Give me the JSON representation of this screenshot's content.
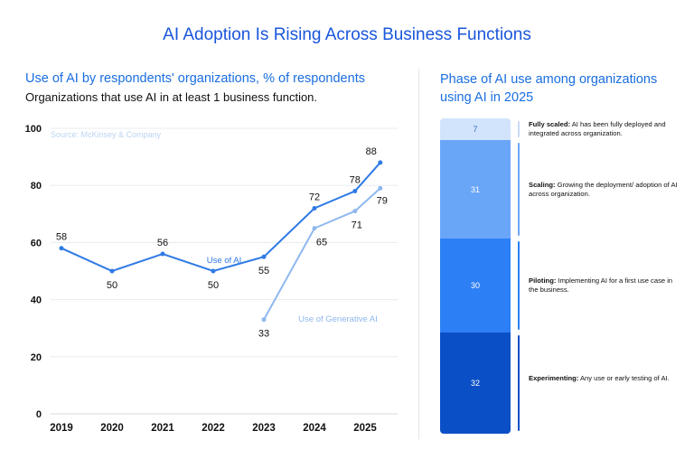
{
  "main_title": "AI Adoption Is Rising Across Business Functions",
  "left": {
    "title": "Use of AI by respondents' organizations, % of respondents",
    "subtitle": "Organizations that use AI in at least 1 business function.",
    "source": "Source: McKinsey & Company"
  },
  "right": {
    "title": "Phase of AI use among organizations using AI in 2025"
  },
  "colors": {
    "title_blue": "#1a56db",
    "ai_line": "#2f7ae5",
    "genai_line": "#8fb8ef",
    "grid": "#e8ebef",
    "fully_scaled": "#d2e3fc",
    "scaling": "#6aa6f8",
    "piloting": "#2d7ff5",
    "experimenting": "#0b4fc7"
  },
  "chart_data": [
    {
      "type": "line",
      "x": [
        "2019",
        "2020",
        "2021",
        "2022",
        "2023",
        "2024",
        "2025"
      ],
      "ylim": [
        0,
        100
      ],
      "yticks": [
        0,
        20,
        40,
        60,
        80,
        100
      ],
      "grid": true,
      "series": [
        {
          "name": "Use of AI",
          "points": [
            {
              "x": 2019.0,
              "y": 58,
              "label": "58"
            },
            {
              "x": 2020.0,
              "y": 50,
              "label": "50"
            },
            {
              "x": 2021.0,
              "y": 56,
              "label": "56"
            },
            {
              "x": 2022.0,
              "y": 50,
              "label": "50"
            },
            {
              "x": 2023.0,
              "y": 55,
              "label": "55"
            },
            {
              "x": 2024.0,
              "y": 72,
              "label": "72"
            },
            {
              "x": 2024.8,
              "y": 78,
              "label": "78"
            },
            {
              "x": 2025.3,
              "y": 88,
              "label": "88"
            }
          ]
        },
        {
          "name": "Use of Generative AI",
          "points": [
            {
              "x": 2023.0,
              "y": 33,
              "label": "33"
            },
            {
              "x": 2024.0,
              "y": 65,
              "label": "65"
            },
            {
              "x": 2024.8,
              "y": 71,
              "label": "71"
            },
            {
              "x": 2025.3,
              "y": 79,
              "label": "79"
            }
          ]
        }
      ]
    },
    {
      "type": "bar",
      "orientation": "stacked-vertical",
      "categories": [
        "Fully scaled",
        "Scaling",
        "Piloting",
        "Experimenting"
      ],
      "values": [
        7,
        31,
        30,
        32
      ],
      "descriptions": [
        "AI has been fully deployed and integrated across organization.",
        "Growing the deployment/ adoption of AI across organization.",
        "Implementing AI for a first use case in the business.",
        "Any use or early testing of AI."
      ]
    }
  ]
}
